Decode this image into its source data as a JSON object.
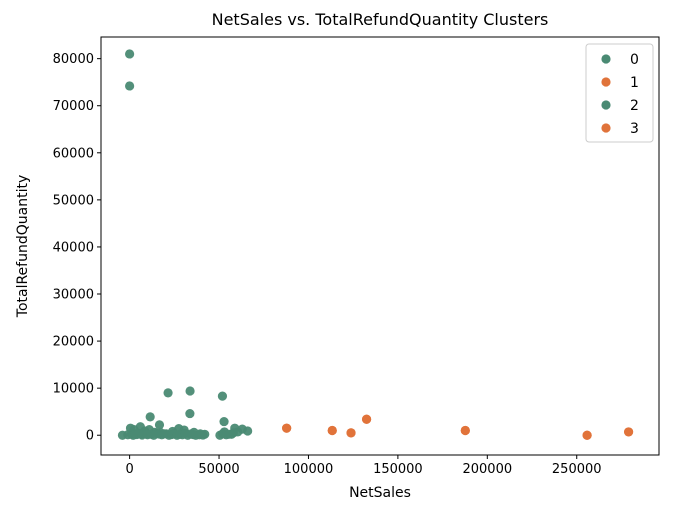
{
  "chart_data": {
    "type": "scatter",
    "title": "NetSales vs. TotalRefundQuantity Clusters",
    "xlabel": "NetSales",
    "ylabel": "TotalRefundQuantity",
    "xlim": [
      -16000,
      296000
    ],
    "ylim": [
      -4200,
      84600
    ],
    "xticks": [
      0,
      50000,
      100000,
      150000,
      200000,
      250000
    ],
    "xtick_labels": [
      "0",
      "50000",
      "100000",
      "150000",
      "200000",
      "250000"
    ],
    "yticks": [
      0,
      10000,
      20000,
      30000,
      40000,
      50000,
      60000,
      70000,
      80000
    ],
    "ytick_labels": [
      "0",
      "10000",
      "20000",
      "30000",
      "40000",
      "50000",
      "60000",
      "70000",
      "80000"
    ],
    "grid": false,
    "legend_position": "top-right",
    "series": [
      {
        "name": "0",
        "color": "#4a8a73",
        "x": [
          0,
          0,
          21500,
          33800,
          51900,
          11500,
          33700,
          16700,
          52800,
          58800,
          500,
          2500,
          6000,
          8500,
          11000,
          14000,
          17500,
          20500,
          24000,
          27500,
          30500,
          36000,
          39500,
          42000,
          53000,
          57000
        ],
        "y": [
          81000,
          74200,
          9000,
          9400,
          8300,
          3900,
          4600,
          2200,
          2900,
          1500,
          1500,
          1200,
          1800,
          900,
          1200,
          600,
          500,
          300,
          800,
          1400,
          1100,
          600,
          300,
          200,
          700,
          200
        ]
      },
      {
        "name": "1",
        "color": "#e0733a",
        "x": [
          87800,
          113300,
          123800,
          132500,
          187700,
          255800,
          279000
        ],
        "y": [
          1500,
          1000,
          500,
          3400,
          1000,
          0,
          700
        ]
      },
      {
        "name": "2",
        "color": "#4a8a73",
        "x": [
          -4000,
          -1000,
          1000,
          2000,
          3000,
          4000,
          5000,
          6500,
          7000,
          8000,
          9500,
          10000,
          12000,
          13500,
          15000,
          16500,
          18000,
          19500,
          22000,
          23500,
          25000,
          26500,
          28000,
          29500,
          31000,
          32500,
          34000,
          35500,
          37000,
          39000,
          41000,
          50500,
          52000,
          54000,
          55500,
          58000,
          60500,
          63000,
          66000
        ],
        "y": [
          0,
          100,
          200,
          0,
          300,
          150,
          400,
          200,
          50,
          500,
          300,
          100,
          200,
          0,
          400,
          250,
          100,
          300,
          0,
          150,
          350,
          0,
          200,
          100,
          400,
          0,
          250,
          150,
          0,
          100,
          50,
          0,
          300,
          100,
          200,
          500,
          700,
          1300,
          900
        ]
      },
      {
        "name": "3",
        "color": "#e0733a",
        "x": [
          87800,
          113300,
          123800,
          132500,
          187700,
          255800,
          279000
        ],
        "y": [
          1500,
          1000,
          500,
          3400,
          1000,
          0,
          700
        ]
      }
    ]
  }
}
